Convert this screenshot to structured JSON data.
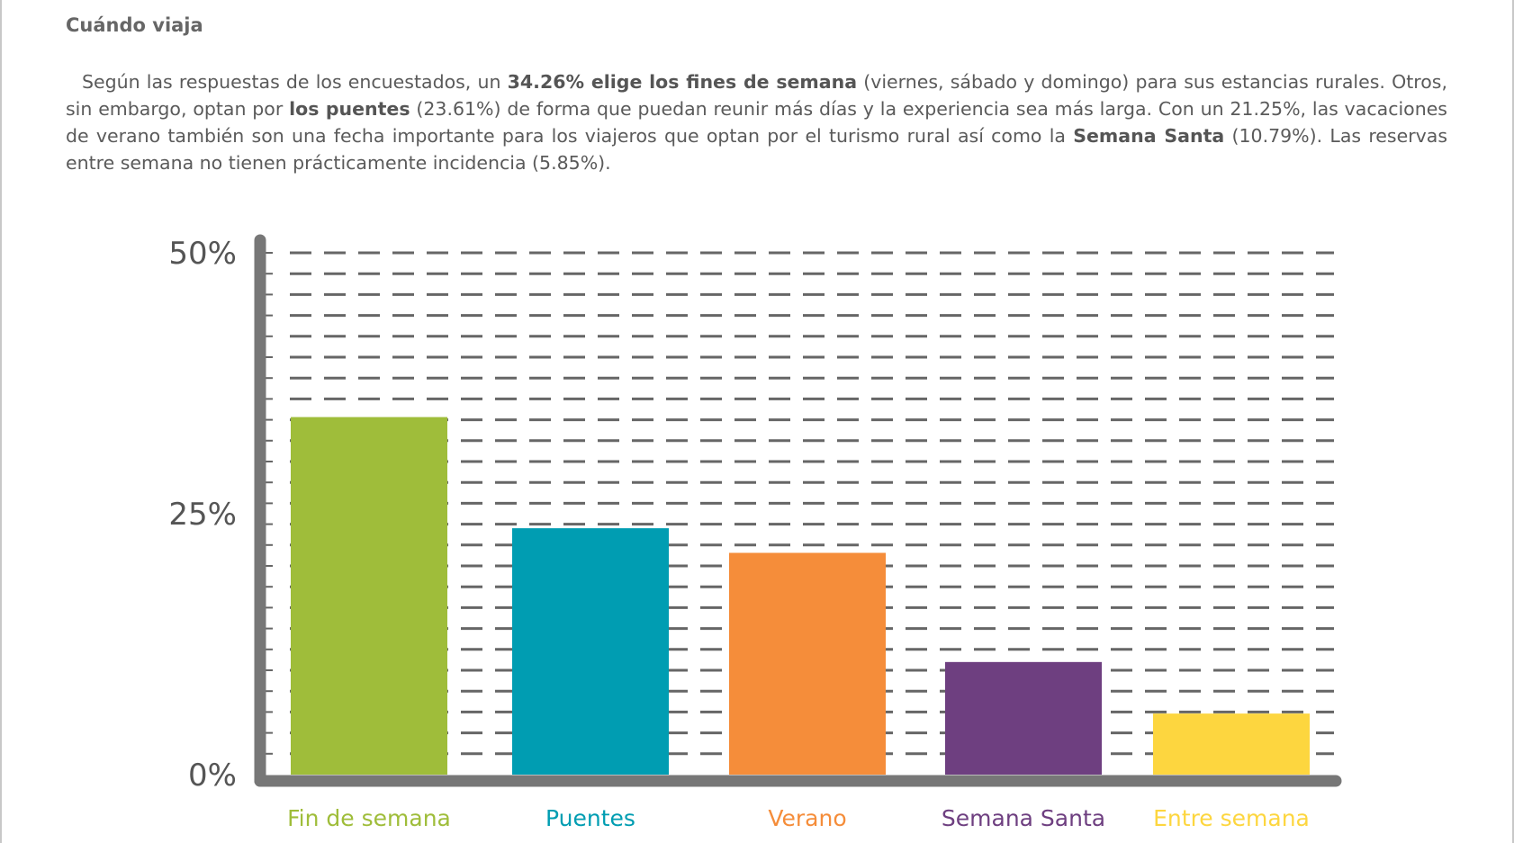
{
  "heading": "Cuándo viaja",
  "paragraph": {
    "t1": "Según las respuestas de los encuestados, un ",
    "b1": "34.26% elige los fines de semana",
    "t2": " (viernes, sábado y domingo) para sus estancias rurales. Otros, sin embargo, optan por ",
    "b2": "los puentes",
    "t3": " (23.61%) de forma que puedan reunir más días y la experiencia sea más larga. Con un 21.25%, las vacaciones de verano también son una fecha importante para los viajeros que optan por el turismo rural así como la ",
    "b3": "Semana Santa",
    "t4": " (10.79%). Las reservas entre semana no tienen prácticamente incidencia (5.85%)."
  },
  "chart_data": {
    "type": "bar",
    "title": "",
    "xlabel": "",
    "ylabel": "",
    "categories": [
      "Fin de semana",
      "Puentes",
      "Verano",
      "Semana Santa",
      "Entre semana"
    ],
    "values": [
      34.26,
      23.61,
      21.25,
      10.79,
      5.85
    ],
    "colors": [
      "#9fbd3a",
      "#009db2",
      "#f58d3a",
      "#6e3f80",
      "#fdd63f"
    ],
    "ylim": [
      0,
      50
    ],
    "yticks": [
      "0%",
      "25%",
      "50%"
    ],
    "ytick_values": [
      0,
      25,
      50
    ],
    "grid": true,
    "axis_color": "#777777",
    "grid_color": "#666666"
  }
}
